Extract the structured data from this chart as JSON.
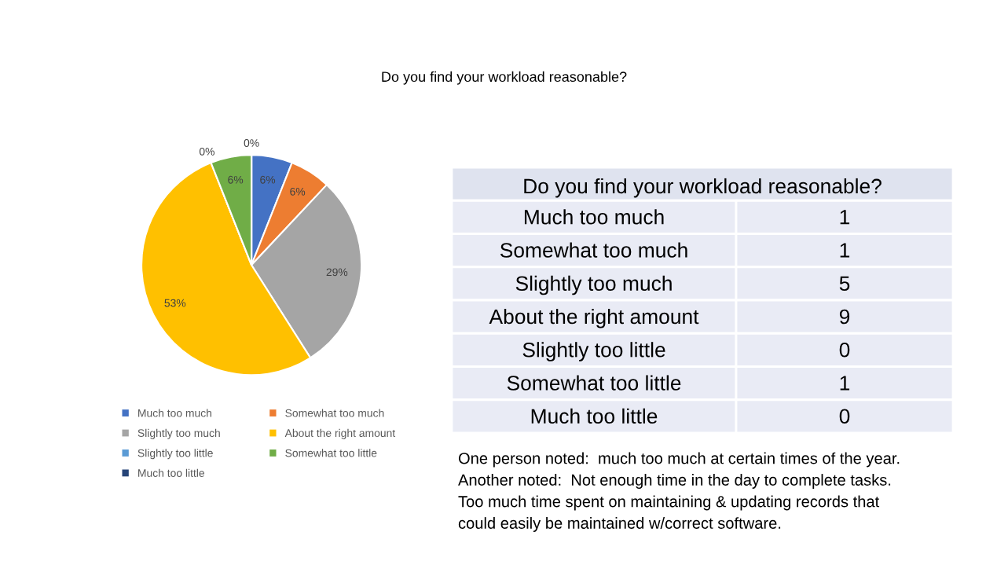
{
  "chart_data": [
    {
      "type": "pie",
      "title": "Do you find your workload reasonable?",
      "categories": [
        "Much too much",
        "Somewhat too much",
        "Slightly too much",
        "About the right amount",
        "Slightly too little",
        "Somewhat too little",
        "Much too little"
      ],
      "values": [
        6,
        6,
        29,
        53,
        0,
        6,
        0
      ],
      "value_labels": [
        "6%",
        "6%",
        "29%",
        "53%",
        "0%",
        "6%",
        "0%"
      ],
      "colors": [
        "#4472c4",
        "#ed7d31",
        "#a5a5a5",
        "#ffc000",
        "#5b9bd5",
        "#70ad47",
        "#264478"
      ],
      "legend": "bottom"
    },
    {
      "type": "other",
      "title": "Do you find your workload reasonable?",
      "categories": [
        "Much too much",
        "Somewhat too much",
        "Slightly too much",
        "About the right amount",
        "Slightly too little",
        "Somewhat too little",
        "Much too little"
      ],
      "values": [
        1,
        1,
        5,
        9,
        0,
        1,
        0
      ],
      "data_labels": true,
      "annotations": [
        "One person noted:  much too much at certain times of the year.",
        "Another noted:  Not enough time in the day to complete tasks.",
        "Too much time spent on maintaining & updating records that",
        "could easily be maintained w/correct software."
      ]
    }
  ]
}
